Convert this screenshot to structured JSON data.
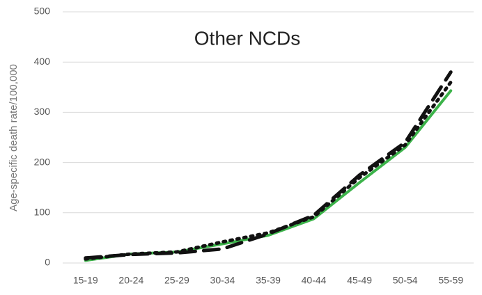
{
  "chart_data": {
    "type": "line",
    "title": "Other NCDs",
    "ylabel": "Age-specific death rate/100,000",
    "categories": [
      "15-19",
      "20-24",
      "25-29",
      "30-34",
      "35-39",
      "40-44",
      "45-49",
      "50-54",
      "55-59"
    ],
    "series": [
      {
        "color": "#3cb34a",
        "style": "solid",
        "values": [
          5,
          18,
          22,
          38,
          55,
          88,
          160,
          230,
          343
        ]
      },
      {
        "color": "#111111",
        "style": "dashed",
        "values": [
          10,
          17,
          20,
          28,
          58,
          95,
          175,
          240,
          380
        ]
      },
      {
        "color": "#111111",
        "style": "dotted",
        "values": [
          8,
          18,
          22,
          42,
          60,
          92,
          170,
          235,
          360
        ]
      }
    ],
    "ylim": [
      0,
      500
    ],
    "yticks": [
      0,
      100,
      200,
      300,
      400,
      500
    ],
    "grid": true
  }
}
